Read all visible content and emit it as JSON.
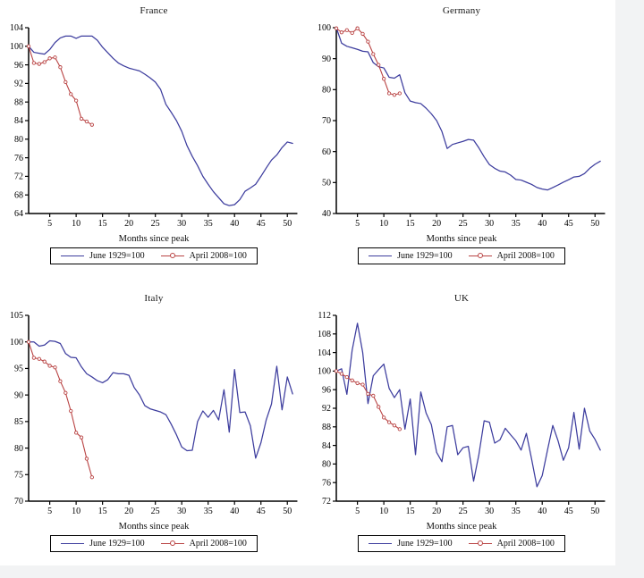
{
  "window": {
    "background": "#f2f3f4",
    "canvas_background": "#ffffff",
    "axis_color": "#000000",
    "text_color": "#0d0d0d"
  },
  "legend_labels": {
    "series1": "June 1929=100",
    "series2": "April 2008=100"
  },
  "chart_data": [
    {
      "type": "line",
      "title": "France",
      "xlabel": "Months since peak",
      "xlim": [
        1,
        52.5
      ],
      "ylim": [
        64,
        104
      ],
      "yticks": [
        64,
        68,
        72,
        76,
        80,
        84,
        88,
        92,
        96,
        100,
        104
      ],
      "xticks": [
        5,
        10,
        15,
        20,
        25,
        30,
        35,
        40,
        45,
        50
      ],
      "grid": false,
      "legend_position": "bottom",
      "series": [
        {
          "name": "June 1929=100",
          "color": "#3d3d9e",
          "marker": "none",
          "x_start": 1,
          "values": [
            100,
            98.7,
            98.5,
            98.3,
            99.3,
            100.8,
            101.8,
            102.2,
            102.2,
            101.7,
            102.2,
            102.2,
            102.2,
            101.3,
            99.8,
            98.6,
            97.4,
            96.4,
            95.8,
            95.3,
            95,
            94.7,
            94,
            93.2,
            92.3,
            90.7,
            87.5,
            85.8,
            84,
            81.7,
            78.6,
            76.3,
            74.3,
            72,
            70.3,
            68.7,
            67.4,
            66.1,
            65.7,
            65.9,
            67,
            68.8,
            69.5,
            70.3,
            72,
            73.8,
            75.5,
            76.6,
            78.2,
            79.4,
            79.1
          ]
        },
        {
          "name": "April 2008=100",
          "color": "#b94343",
          "marker": "open-circle",
          "x_start": 1,
          "values": [
            100,
            96.4,
            96.2,
            96.6,
            97.4,
            97.6,
            95.5,
            92.3,
            89.7,
            88.3,
            84.4,
            83.8,
            83.1
          ]
        }
      ]
    },
    {
      "type": "line",
      "title": "Germany",
      "xlabel": "Months since peak",
      "xlim": [
        1,
        52.5
      ],
      "ylim": [
        40,
        100
      ],
      "yticks": [
        40,
        50,
        60,
        70,
        80,
        90,
        100
      ],
      "xticks": [
        5,
        10,
        15,
        20,
        25,
        30,
        35,
        40,
        45,
        50
      ],
      "grid": false,
      "legend_position": "bottom",
      "series": [
        {
          "name": "June 1929=100",
          "color": "#3d3d9e",
          "marker": "none",
          "x_start": 1,
          "values": [
            100,
            95,
            94,
            93.5,
            93,
            92.4,
            92.2,
            88.7,
            87.4,
            87,
            84,
            83.7,
            84.8,
            79,
            76.3,
            75.8,
            75.5,
            74,
            72.2,
            70,
            66.5,
            61,
            62.3,
            62.8,
            63.3,
            63.9,
            63.7,
            61.2,
            58.3,
            55.8,
            54.6,
            53.7,
            53.4,
            52.4,
            51,
            50.8,
            50.1,
            49.4,
            48.4,
            47.9,
            47.6,
            48.4,
            49.2,
            50.1,
            50.9,
            51.8,
            52,
            52.9,
            54.6,
            55.9,
            56.9
          ]
        },
        {
          "name": "April 2008=100",
          "color": "#b94343",
          "marker": "open-circle",
          "x_start": 1,
          "values": [
            99.8,
            98.5,
            99.2,
            98.3,
            99.8,
            98,
            95.5,
            91.5,
            88,
            83.5,
            78.8,
            78.3,
            78.8
          ]
        }
      ]
    },
    {
      "type": "line",
      "title": "Italy",
      "xlabel": "Months since peak",
      "xlim": [
        1,
        52.5
      ],
      "ylim": [
        70,
        105
      ],
      "yticks": [
        70,
        75,
        80,
        85,
        90,
        95,
        100,
        105
      ],
      "xticks": [
        5,
        10,
        15,
        20,
        25,
        30,
        35,
        40,
        45,
        50
      ],
      "grid": false,
      "legend_position": "bottom",
      "series": [
        {
          "name": "June 1929=100",
          "color": "#3d3d9e",
          "marker": "none",
          "x_start": 1,
          "values": [
            100,
            100,
            99.2,
            99.4,
            100.2,
            100.1,
            99.7,
            97.8,
            97.1,
            97,
            95.3,
            94,
            93.4,
            92.7,
            92.3,
            92.9,
            94.2,
            94,
            94,
            93.7,
            91.4,
            90,
            88,
            87.4,
            87.1,
            86.8,
            86.3,
            84.5,
            82.5,
            80.2,
            79.5,
            79.6,
            85,
            87,
            85.8,
            87.1,
            85.3,
            91,
            83,
            94.8,
            86.7,
            86.8,
            84.2,
            78.1,
            81,
            85.3,
            88.3,
            95.4,
            87.2,
            93.4,
            90.2
          ]
        },
        {
          "name": "April 2008=100",
          "color": "#b94343",
          "marker": "open-circle",
          "x_start": 1,
          "values": [
            100,
            97,
            96.8,
            96.3,
            95.5,
            95.2,
            92.6,
            90.4,
            87,
            82.9,
            82,
            78,
            74.5
          ]
        }
      ]
    },
    {
      "type": "line",
      "title": "UK",
      "xlabel": "Months since peak",
      "xlim": [
        1,
        52.5
      ],
      "ylim": [
        72,
        112
      ],
      "yticks": [
        72,
        76,
        80,
        84,
        88,
        92,
        96,
        100,
        104,
        108,
        112
      ],
      "xticks": [
        5,
        10,
        15,
        20,
        25,
        30,
        35,
        40,
        45,
        50
      ],
      "grid": false,
      "legend_position": "bottom",
      "series": [
        {
          "name": "June 1929=100",
          "color": "#3d3d9e",
          "marker": "none",
          "x_start": 1,
          "values": [
            100,
            100.5,
            95,
            104.5,
            110.3,
            104,
            93,
            99,
            100.3,
            101.5,
            96.3,
            94.3,
            96,
            87.5,
            94,
            82,
            95.5,
            91,
            88.5,
            82.5,
            80.5,
            88,
            88.3,
            82,
            83.5,
            83.8,
            76.3,
            82,
            89.3,
            89,
            84.5,
            85.2,
            87.7,
            86.3,
            85,
            83,
            86.6,
            81,
            75.1,
            77.5,
            83,
            88.3,
            85,
            80.8,
            83.5,
            91.1,
            83.2,
            92,
            87.1,
            85.3,
            83
          ]
        },
        {
          "name": "April 2008=100",
          "color": "#b94343",
          "marker": "open-circle",
          "x_start": 1,
          "values": [
            100,
            99.4,
            98.7,
            98,
            97.4,
            97.1,
            95.1,
            94.7,
            92.3,
            90,
            89,
            88.3,
            87.5
          ]
        }
      ]
    }
  ]
}
